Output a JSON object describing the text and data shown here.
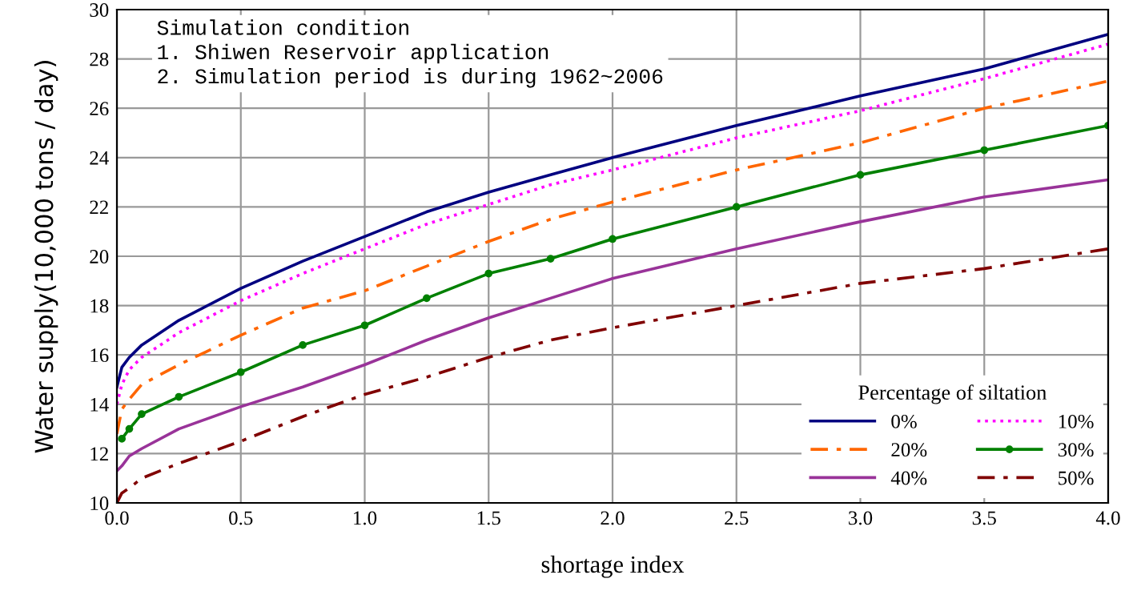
{
  "chart_data": {
    "type": "line",
    "xlabel": "shortage index",
    "ylabel": "Water supply(10,000 tons / day)",
    "legend_title": "Percentage of siltation",
    "x": [
      0,
      0.02,
      0.05,
      0.1,
      0.25,
      0.5,
      0.75,
      1.0,
      1.25,
      1.5,
      1.75,
      2.0,
      2.5,
      3.0,
      3.5,
      4.0
    ],
    "series": [
      {
        "name": "0%",
        "color": "#000080",
        "line_style": "solid",
        "values": [
          14.7,
          15.5,
          15.9,
          16.4,
          17.4,
          18.7,
          19.8,
          20.8,
          21.8,
          22.6,
          23.3,
          24.0,
          25.3,
          26.5,
          27.6,
          29.0
        ]
      },
      {
        "name": "10%",
        "color": "#ff00ff",
        "line_style": "dotted",
        "values": [
          14.0,
          14.8,
          15.4,
          15.9,
          16.9,
          18.2,
          19.3,
          20.3,
          21.3,
          22.1,
          22.9,
          23.5,
          24.8,
          25.9,
          27.2,
          28.6
        ]
      },
      {
        "name": "20%",
        "color": "#ff6600",
        "line_style": "dashed",
        "values": [
          12.8,
          13.8,
          14.2,
          14.8,
          15.6,
          16.8,
          17.9,
          18.6,
          19.6,
          20.6,
          21.5,
          22.2,
          23.5,
          24.6,
          26.0,
          27.1
        ]
      },
      {
        "name": "30%",
        "color": "#008000",
        "line_style": "solid",
        "marker": "circle",
        "values": [
          null,
          12.6,
          13.0,
          13.6,
          14.3,
          15.3,
          16.4,
          17.2,
          18.3,
          19.3,
          19.9,
          20.7,
          22.0,
          23.3,
          24.3,
          25.3
        ]
      },
      {
        "name": "40%",
        "color": "#993399",
        "line_style": "solid",
        "values": [
          11.3,
          11.5,
          11.9,
          12.2,
          13.0,
          13.9,
          14.7,
          15.6,
          16.6,
          17.5,
          18.3,
          19.1,
          20.3,
          21.4,
          22.4,
          23.1
        ]
      },
      {
        "name": "50%",
        "color": "#800000",
        "line_style": "dashed",
        "values": [
          10.0,
          10.4,
          10.6,
          11.0,
          11.6,
          12.5,
          13.5,
          14.4,
          15.1,
          15.9,
          16.6,
          17.1,
          18.0,
          18.9,
          19.5,
          20.3
        ]
      }
    ],
    "xlim": [
      0,
      4
    ],
    "ylim": [
      10,
      30
    ],
    "xticks": [
      {
        "value": 0,
        "label": "0.0"
      },
      0.5,
      {
        "value": 1,
        "label": "1.0"
      },
      1.5,
      {
        "value": 2,
        "label": "2.0"
      },
      2.5,
      {
        "value": 3,
        "label": "3.0"
      },
      3.5,
      {
        "value": 4,
        "label": "4.0"
      }
    ],
    "yticks": [
      10,
      12,
      14,
      16,
      18,
      20,
      22,
      24,
      26,
      28,
      30
    ],
    "annotations": [
      "Simulation condition\n1. Shiwen Reservoir application\n2. Simulation period is during 1962~2006"
    ],
    "grid": true,
    "legend": "bottom right"
  }
}
